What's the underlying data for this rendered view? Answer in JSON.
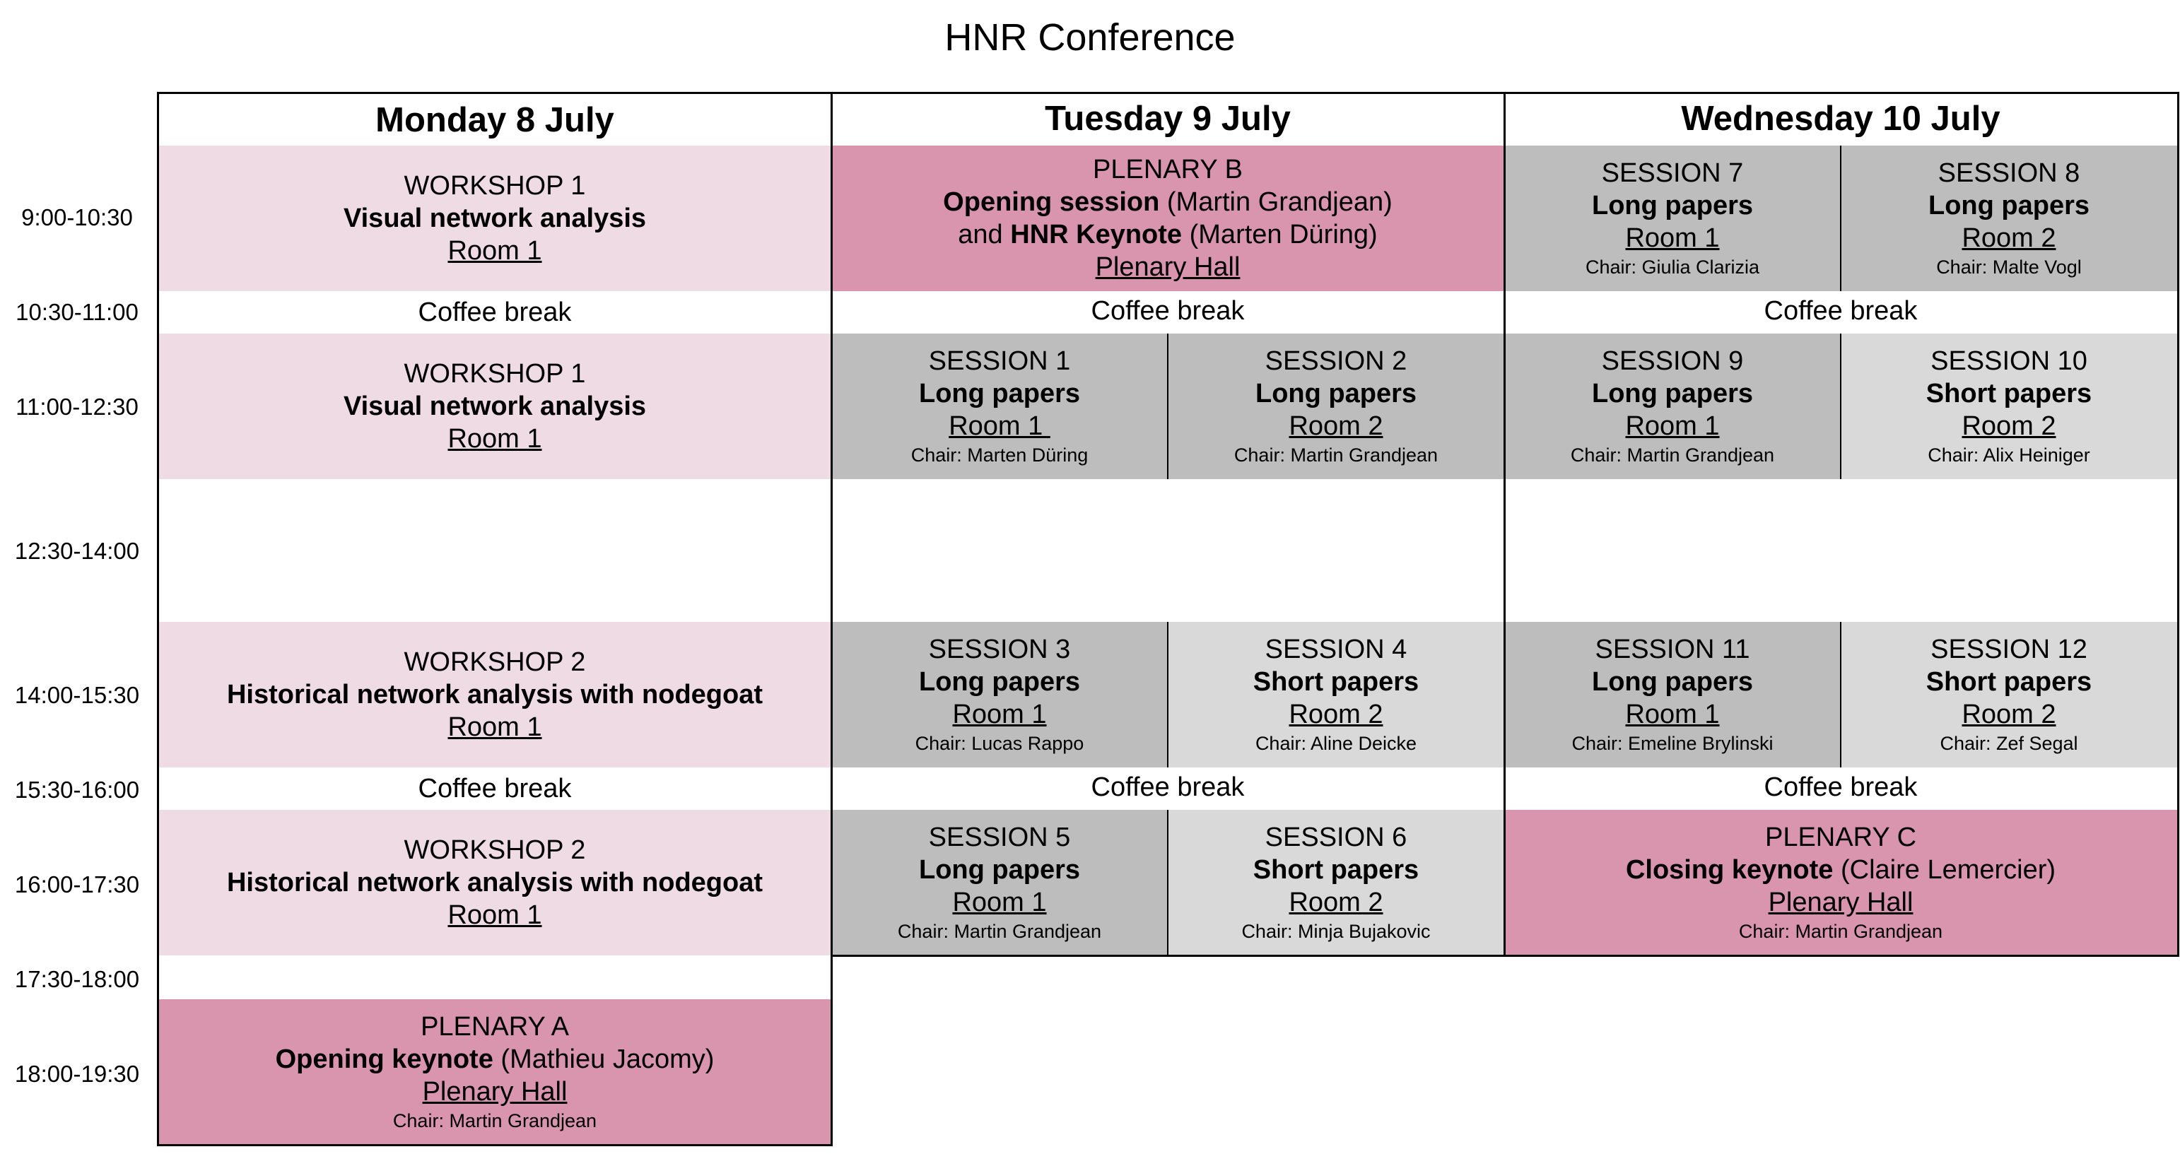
{
  "title": "HNR Conference",
  "days": [
    "Monday 8 July",
    "Tuesday 9 July",
    "Wednesday 10 July"
  ],
  "times": [
    "9:00-10:30",
    "10:30-11:00",
    "11:00-12:30",
    "12:30-14:00",
    "14:00-15:30",
    "15:30-16:00",
    "16:00-17:30",
    "17:30-18:00",
    "18:00-19:30"
  ],
  "coffee": "Coffee break",
  "mon": {
    "w1a": {
      "kind": "WORKSHOP 1",
      "title": "Visual network analysis",
      "room": "Room 1"
    },
    "w1b": {
      "kind": "WORKSHOP 1",
      "title": "Visual network analysis",
      "room": "Room 1"
    },
    "w2a": {
      "kind": "WORKSHOP 2",
      "title": "Historical network analysis with nodegoat",
      "room": "Room 1"
    },
    "w2b": {
      "kind": "WORKSHOP 2",
      "title": "Historical network analysis with nodegoat",
      "room": "Room 1"
    },
    "plA": {
      "kind": "PLENARY A",
      "title": "Opening keynote",
      "speaker": " (Mathieu Jacomy)",
      "room": "Plenary Hall",
      "chair": "Chair: Martin Grandjean"
    }
  },
  "tue": {
    "plB": {
      "kind": "PLENARY B",
      "title1": "Opening session",
      "speaker1": " (Martin Grandjean)",
      "pre2": "and ",
      "title2": "HNR Keynote",
      "speaker2": " (Marten Düring)",
      "room": "Plenary Hall"
    },
    "s1": {
      "kind": "SESSION 1",
      "title": "Long papers",
      "room": "Room 1 ",
      "chair": "Chair: Marten Düring"
    },
    "s2": {
      "kind": "SESSION 2",
      "title": "Long papers",
      "room": "Room 2",
      "chair": "Chair: Martin Grandjean"
    },
    "s3": {
      "kind": "SESSION 3",
      "title": "Long papers",
      "room": "Room 1",
      "chair": "Chair: Lucas Rappo"
    },
    "s4": {
      "kind": "SESSION 4",
      "title": "Short papers",
      "room": "Room 2",
      "chair": "Chair: Aline Deicke"
    },
    "s5": {
      "kind": "SESSION 5",
      "title": "Long papers",
      "room": "Room 1",
      "chair": "Chair: Martin Grandjean"
    },
    "s6": {
      "kind": "SESSION 6",
      "title": "Short papers",
      "room": "Room 2",
      "chair": "Chair: Minja Bujakovic"
    }
  },
  "wed": {
    "s7": {
      "kind": "SESSION 7",
      "title": "Long papers",
      "room": "Room 1",
      "chair": "Chair: Giulia Clarizia"
    },
    "s8": {
      "kind": "SESSION 8",
      "title": "Long papers",
      "room": "Room 2",
      "chair": "Chair: Malte Vogl"
    },
    "s9": {
      "kind": "SESSION 9",
      "title": "Long papers",
      "room": "Room 1",
      "chair": "Chair: Martin Grandjean"
    },
    "s10": {
      "kind": "SESSION 10",
      "title": "Short papers",
      "room": "Room 2",
      "chair": "Chair: Alix Heiniger"
    },
    "s11": {
      "kind": "SESSION 11",
      "title": "Long papers",
      "room": "Room 1",
      "chair": "Chair: Emeline Brylinski"
    },
    "s12": {
      "kind": "SESSION 12",
      "title": "Short papers",
      "room": "Room 2",
      "chair": "Chair: Zef Segal"
    },
    "plC": {
      "kind": "PLENARY C",
      "title": "Closing keynote",
      "speaker": " (Claire Lemercier)",
      "room": "Plenary Hall",
      "chair": "Chair: Martin Grandjean"
    }
  }
}
